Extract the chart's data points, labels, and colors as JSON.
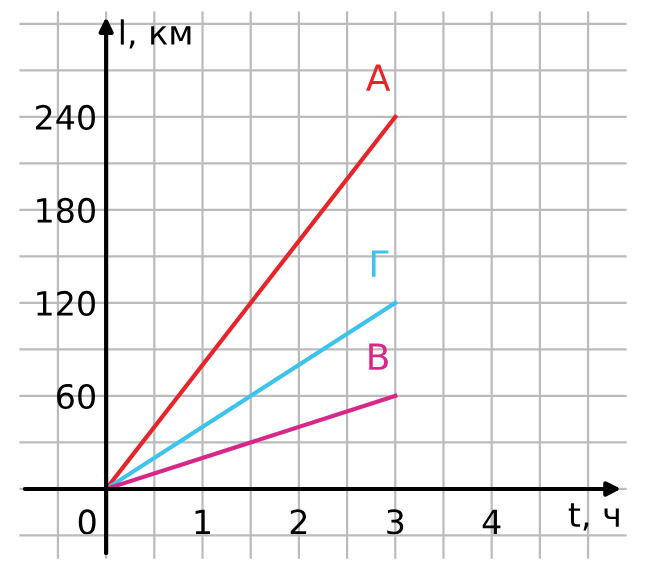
{
  "chart_data": {
    "type": "line",
    "xlabel": "t, ч",
    "ylabel": "l, км",
    "x": [
      0,
      3
    ],
    "series": [
      {
        "name": "А",
        "color": "#e8242b",
        "values": [
          0,
          240
        ]
      },
      {
        "name": "Г",
        "color": "#3ec3ee",
        "values": [
          0,
          120
        ]
      },
      {
        "name": "В",
        "color": "#d7288a",
        "values": [
          0,
          60
        ]
      }
    ],
    "xlim": [
      -0.9,
      5.4
    ],
    "ylim": [
      -45,
      308
    ],
    "xticks": [
      {
        "value": -0.5,
        "label": null
      },
      {
        "value": 0,
        "label": "0"
      },
      {
        "value": 0.5,
        "label": null
      },
      1,
      {
        "value": 1.5,
        "label": null
      },
      2,
      {
        "value": 2.5,
        "label": null
      },
      3,
      {
        "value": 3.5,
        "label": null
      },
      4,
      {
        "value": 4.5,
        "label": null
      },
      {
        "value": 5,
        "label": null
      }
    ],
    "yticks": [
      {
        "value": -30,
        "label": null
      },
      {
        "value": 0,
        "label": null
      },
      {
        "value": 30,
        "label": null
      },
      60,
      {
        "value": 90,
        "label": null
      },
      120,
      {
        "value": 150,
        "label": null
      },
      180,
      {
        "value": 210,
        "label": null
      },
      240,
      {
        "value": 270,
        "label": null
      },
      {
        "value": 300,
        "label": null
      }
    ],
    "grid": true,
    "marker": "none",
    "line_style": "solid",
    "legend": false
  }
}
